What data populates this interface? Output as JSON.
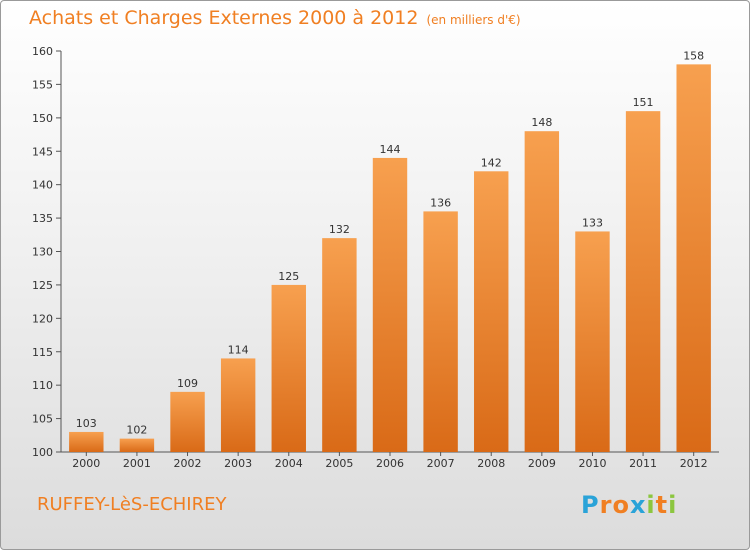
{
  "title": "Achats et Charges Externes 2000 à 2012",
  "subtitle": "(en milliers d'€)",
  "commune": "RUFFEY-LèS-ECHIREY",
  "logo": {
    "letters": [
      "P",
      "r",
      "o",
      "x",
      "i",
      "t",
      "i"
    ],
    "colors": [
      "#2aa3d8",
      "#f07f22",
      "#f07f22",
      "#2aa3d8",
      "#8cc63f",
      "#f07f22",
      "#8cc63f"
    ]
  },
  "colors": {
    "accent": "#f07f22",
    "bar_top": "#f7a04f",
    "bar_bottom": "#d96a17"
  },
  "chart_data": {
    "type": "bar",
    "title": "Achats et Charges Externes 2000 à 2012",
    "subtitle": "(en milliers d'€)",
    "categories": [
      "2000",
      "2001",
      "2002",
      "2003",
      "2004",
      "2005",
      "2006",
      "2007",
      "2008",
      "2009",
      "2010",
      "2011",
      "2012"
    ],
    "values": [
      103,
      102,
      109,
      114,
      125,
      132,
      144,
      136,
      142,
      148,
      133,
      151,
      158
    ],
    "ylim": [
      100,
      160
    ],
    "yticks": [
      100,
      105,
      110,
      115,
      120,
      125,
      130,
      135,
      140,
      145,
      150,
      155,
      160
    ],
    "grid": false,
    "xlabel": "",
    "ylabel": ""
  }
}
